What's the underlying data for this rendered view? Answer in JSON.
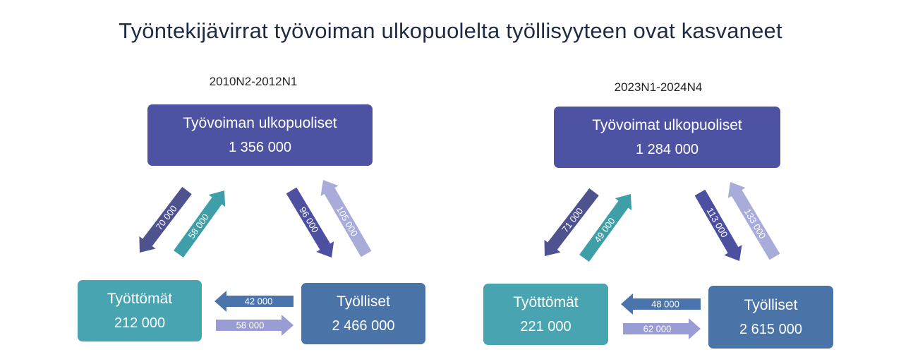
{
  "title": "Työntekijävirrat työvoiman ulkopuolelta työllisyyteen ovat kasvaneet",
  "colors": {
    "outside_box": "#4e52a2",
    "unemployed_box": "#48a4b1",
    "employed_box": "#4a73a8",
    "arrow_dark_purple": "#4e528f",
    "arrow_teal": "#3f9fa8",
    "arrow_indigo": "#4d4fa0",
    "arrow_light_lavender": "#a9acd9",
    "arrow_steel_blue": "#4a74ab",
    "arrow_light_purple": "#9a9cd4"
  },
  "panels": [
    {
      "period": "2010N2-2012N1",
      "outside": {
        "label": "Työvoiman ulkopuoliset",
        "value": "1 356 000"
      },
      "unemployed": {
        "label": "Työttömät",
        "value": "212 000"
      },
      "employed": {
        "label": "Työlliset",
        "value": "2 466 000"
      },
      "flows": {
        "outside_to_unemployed": "70 000",
        "unemployed_to_outside": "58 000",
        "outside_to_employed": "96 000",
        "employed_to_outside": "105 000",
        "employed_to_unemployed": "42 000",
        "unemployed_to_employed": "58 000"
      }
    },
    {
      "period": "2023N1-2024N4",
      "outside": {
        "label": "Työvoimat ulkopuoliset",
        "value": "1 284 000"
      },
      "unemployed": {
        "label": "Työttömät",
        "value": "221 000"
      },
      "employed": {
        "label": "Työlliset",
        "value": "2 615 000"
      },
      "flows": {
        "outside_to_unemployed": "71 000",
        "unemployed_to_outside": "49 000",
        "outside_to_employed": "113 000",
        "employed_to_outside": "133 000",
        "employed_to_unemployed": "48 000",
        "unemployed_to_employed": "62 000"
      }
    }
  ]
}
